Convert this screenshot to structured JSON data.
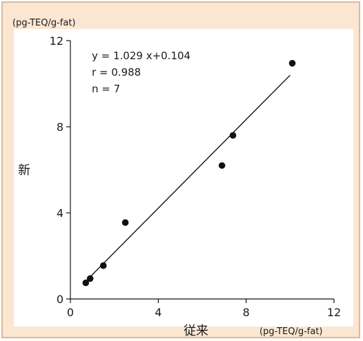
{
  "chart_data": {
    "type": "scatter",
    "title": "",
    "xlabel": "従来",
    "ylabel": "新",
    "x_unit": "(pg-TEQ/g-fat)",
    "y_unit": "(pg-TEQ/g-fat)",
    "xlim": [
      0,
      12
    ],
    "ylim": [
      0,
      12
    ],
    "x_ticks": [
      0,
      4,
      8,
      12
    ],
    "y_ticks": [
      0,
      4,
      8,
      12
    ],
    "x_tick_labels": [
      "0",
      "4",
      "8",
      "12"
    ],
    "y_tick_labels": [
      "0",
      "4",
      "8",
      "12"
    ],
    "grid": false,
    "points": [
      {
        "x": 0.7,
        "y": 0.75
      },
      {
        "x": 0.9,
        "y": 0.95
      },
      {
        "x": 1.5,
        "y": 1.55
      },
      {
        "x": 2.5,
        "y": 3.55
      },
      {
        "x": 6.9,
        "y": 6.2
      },
      {
        "x": 7.4,
        "y": 7.6
      },
      {
        "x": 10.1,
        "y": 10.95
      }
    ],
    "regression": {
      "slope": 1.029,
      "intercept": 0.104,
      "x_range": [
        0.65,
        10.0
      ]
    },
    "annotations": [
      "y = 1.029 x+0.104",
      "r = 0.988",
      "n = 7"
    ],
    "colors": {
      "background": "#fbe6d2",
      "plot_area": "#ffffff",
      "border": "#d9b99a",
      "marker": "#111111",
      "line": "#111111"
    }
  }
}
